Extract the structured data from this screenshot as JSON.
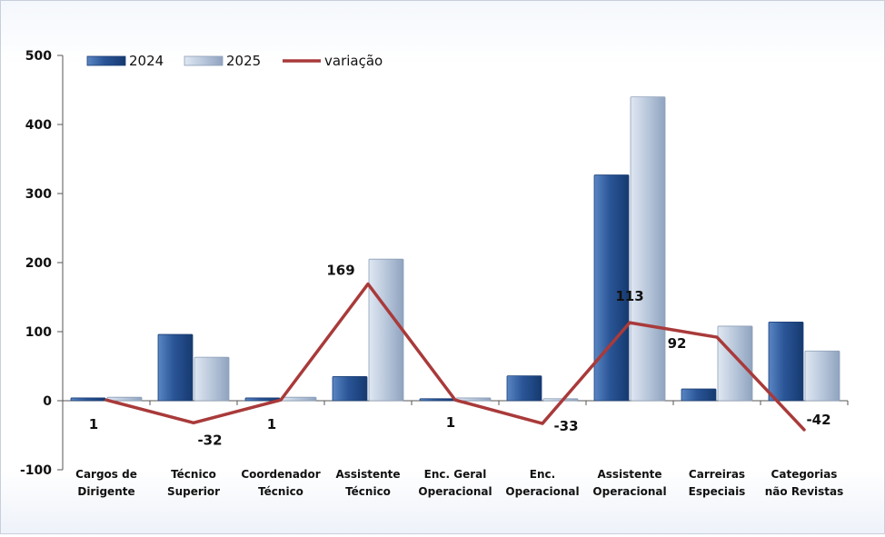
{
  "chart_data": {
    "type": "bar",
    "categories": [
      [
        "Cargos de",
        "Dirigente"
      ],
      [
        "Técnico",
        "Superior"
      ],
      [
        "Coordenador",
        "Técnico"
      ],
      [
        "Assistente",
        "Técnico"
      ],
      [
        "Enc. Geral",
        "Operacional"
      ],
      [
        "Enc.",
        "Operacional"
      ],
      [
        "Assistente",
        "Operacional"
      ],
      [
        "Carreiras",
        "Especiais"
      ],
      [
        "Categorias",
        "não Revistas"
      ]
    ],
    "series": [
      {
        "name": "2024",
        "type": "bar",
        "color": "#2a5597",
        "values": [
          4,
          96,
          4,
          35,
          3,
          36,
          327,
          17,
          114
        ]
      },
      {
        "name": "2025",
        "type": "bar",
        "color": "#bccadd",
        "values": [
          5,
          63,
          5,
          205,
          4,
          3,
          440,
          108,
          72
        ]
      },
      {
        "name": "variação",
        "type": "line",
        "color": "#a93a3a",
        "values": [
          1,
          -32,
          1,
          169,
          1,
          -33,
          113,
          92,
          -42
        ]
      }
    ],
    "data_labels": [
      "1",
      "-32",
      "1",
      "169",
      "1",
      "-33",
      "113",
      "92",
      "-42"
    ],
    "ylim": [
      -100,
      500
    ],
    "yticks": [
      500,
      400,
      300,
      200,
      100,
      0,
      -100
    ],
    "legend": "top-left",
    "grid": false
  }
}
